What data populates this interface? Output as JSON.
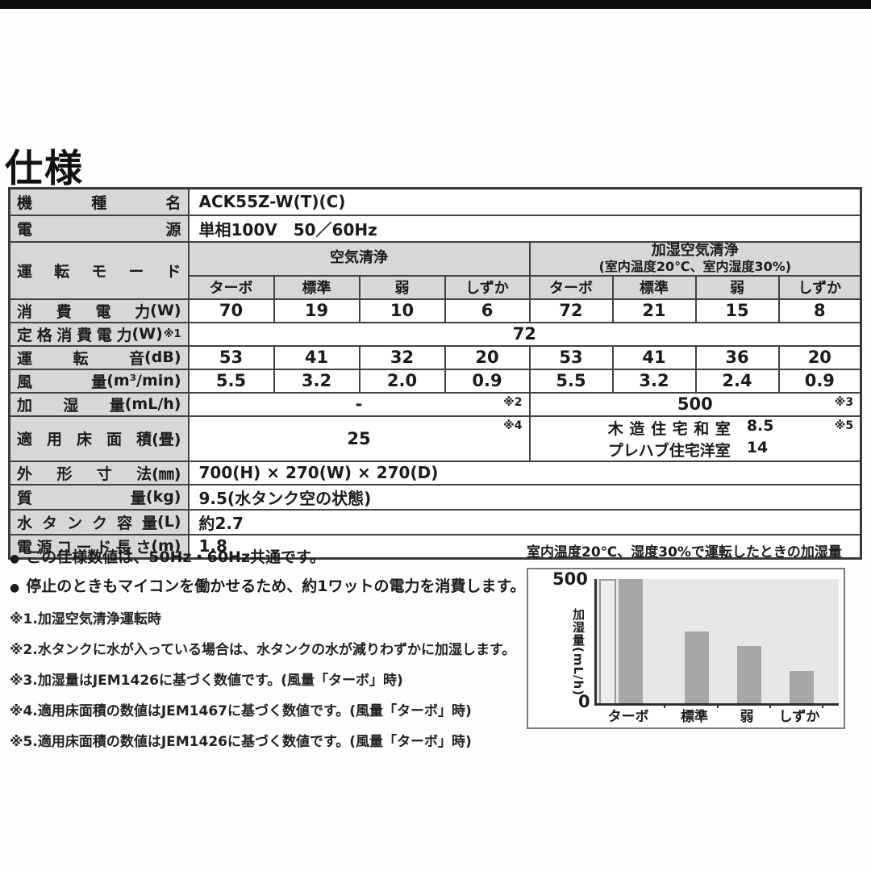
{
  "page": {
    "title": "仕様"
  },
  "spec": {
    "model": {
      "label": "機種名",
      "unit": "",
      "value": "ACK55Z-W(T)(C)"
    },
    "power_source": {
      "label": "電源",
      "unit": "",
      "value": "単相100V　50／60Hz"
    },
    "mode": {
      "label": "運転モード",
      "group_air": "空気清浄",
      "group_humid_line1": "加湿空気清浄",
      "group_humid_line2": "(室内温度20℃、室内湿度30%)",
      "modes": [
        "ターボ",
        "標準",
        "弱",
        "しずか",
        "ターボ",
        "標準",
        "弱",
        "しずか"
      ]
    },
    "power_consumption": {
      "label": "消費電力",
      "unit": "(W)",
      "values": [
        "70",
        "19",
        "10",
        "6",
        "72",
        "21",
        "15",
        "8"
      ]
    },
    "rated_power": {
      "label": "定格消費電力",
      "unit": "(W)",
      "note": "※1",
      "value": "72"
    },
    "noise": {
      "label": "運転音",
      "unit": "(dB)",
      "values": [
        "53",
        "41",
        "32",
        "20",
        "53",
        "41",
        "36",
        "20"
      ]
    },
    "airflow": {
      "label": "風量",
      "unit": "(m³/min)",
      "values": [
        "5.5",
        "3.2",
        "2.0",
        "0.9",
        "5.5",
        "3.2",
        "2.4",
        "0.9"
      ]
    },
    "humidification": {
      "label": "加湿量",
      "unit": "(mL/h)",
      "air_value": "-",
      "air_note": "※2",
      "humid_value": "500",
      "humid_note": "※3"
    },
    "floor_area": {
      "label": "適用床面積",
      "unit": "(畳)",
      "air_value": "25",
      "air_note": "※4",
      "humid_rows": [
        {
          "name": "木造住宅和室",
          "value": "8.5"
        },
        {
          "name": "プレハブ住宅洋室",
          "value": "14"
        }
      ],
      "humid_note": "※5"
    },
    "dimensions": {
      "label": "外形寸法",
      "unit": "(㎜)",
      "value": "700(H) × 270(W) × 270(D)"
    },
    "weight": {
      "label": "質量",
      "unit": "(kg)",
      "value": "9.5(水タンク空の状態)"
    },
    "tank": {
      "label": "水タンク容量",
      "unit": "(L)",
      "value": "約2.7"
    },
    "cord": {
      "label": "電源コード長さ",
      "unit": "(m)",
      "value": "1.8"
    }
  },
  "notes": {
    "bullet_glyph": "●",
    "bullets": [
      "この仕様数値は、50Hz・60Hz共通です。",
      "停止のときもマイコンを働かせるため、約1ワットの電力を消費します。"
    ],
    "footnotes": [
      "※1.加湿空気清浄運転時",
      "※2.水タンクに水が入っている場合は、水タンクの水が減りわずかに加湿します。",
      "※3.加湿量はJEM1426に基づく数値です。(風量「ターボ」時)",
      "※4.適用床面積の数値はJEM1467に基づく数値です。(風量「ターボ」時)",
      "※5.適用床面積の数値はJEM1426に基づく数値です。(風量「ターボ」時)"
    ]
  },
  "chart_data": {
    "type": "bar",
    "title": "室内温度20℃、湿度30%で運転したときの加湿量",
    "categories": [
      "ターボ",
      "標準",
      "弱",
      "しずか"
    ],
    "values": [
      500,
      290,
      230,
      130
    ],
    "ylabel": "加湿量(mL/h)",
    "ylim": [
      0,
      500
    ],
    "ytick_top": "500",
    "ytick_bottom": "0",
    "grid": false,
    "legend": false,
    "colors": {
      "bar": "#a6a6a9",
      "bar_highlight": "#ededef",
      "plot_bg": "#e7e7e9"
    }
  },
  "colors": {
    "header_bg": "#d7d7d9",
    "border": "#414143",
    "text": "#1b1b1d",
    "top_bar": "#0c0c0c"
  }
}
